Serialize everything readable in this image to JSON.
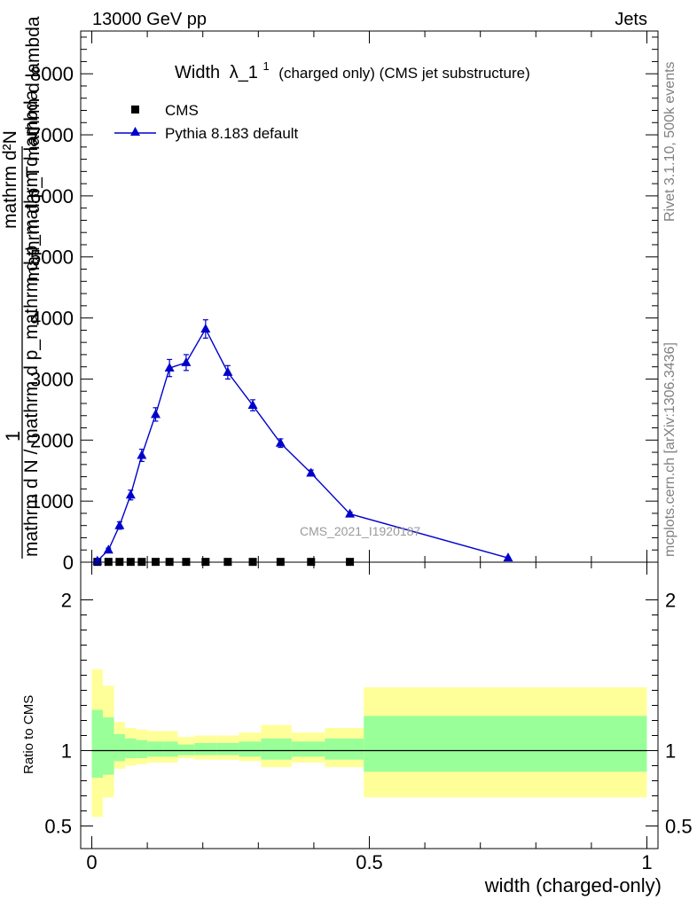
{
  "header": {
    "left": "13000 GeV pp",
    "right": "Jets"
  },
  "side_labels": {
    "rivet": "Rivet 3.1.10,  500k events",
    "mcplots": "mcplots.cern.ch [arXiv:1306.3436]"
  },
  "watermark": "CMS_2021_I1920187",
  "chart_data": [
    {
      "type": "line",
      "title": "Width",
      "title_symbol": "λ_1",
      "title_superscript": "1",
      "title_suffix": "(charged only) (CMS jet substructure)",
      "ylabel_parts": [
        "1",
        "mathrm d N / mathrm d p_mathrm d p_mathrm d lambda",
        "mathrm d²N",
        "mathrm d p_T mathrm d lambda"
      ],
      "xlim": [
        -0.02,
        1.02
      ],
      "ylim": [
        0,
        8700
      ],
      "y_ticks": [
        0,
        1000,
        2000,
        3000,
        4000,
        5000,
        6000,
        7000,
        8000
      ],
      "legend_position": "top-left",
      "series": [
        {
          "name": "CMS",
          "color": "#000000",
          "marker": "square",
          "x": [
            0.01,
            0.03,
            0.05,
            0.07,
            0.09,
            0.115,
            0.14,
            0.17,
            0.205,
            0.245,
            0.29,
            0.34,
            0.395,
            0.465
          ],
          "y": [
            5,
            5,
            5,
            5,
            5,
            5,
            5,
            5,
            5,
            5,
            5,
            5,
            5,
            5
          ]
        },
        {
          "name": "Pythia 8.183 default",
          "color": "#0000cc",
          "marker": "triangle",
          "x": [
            0.01,
            0.03,
            0.05,
            0.07,
            0.09,
            0.115,
            0.14,
            0.17,
            0.205,
            0.245,
            0.29,
            0.34,
            0.395,
            0.465,
            0.75
          ],
          "y": [
            20,
            200,
            600,
            1100,
            1750,
            2420,
            3180,
            3270,
            3820,
            3110,
            2570,
            1950,
            1460,
            790,
            70
          ],
          "yerr": [
            10,
            30,
            60,
            80,
            100,
            110,
            140,
            130,
            150,
            110,
            90,
            70,
            50,
            30,
            10
          ]
        }
      ]
    },
    {
      "type": "area",
      "ylabel": "Ratio to CMS",
      "xlabel": "width (charged-only)",
      "xlim": [
        -0.02,
        1.02
      ],
      "ylim": [
        0.35,
        2.25
      ],
      "y_ticks": [
        0.5,
        1,
        2
      ],
      "x_ticks": [
        0,
        0.5,
        1
      ],
      "x_tick_labels": [
        "0",
        "0.5",
        "1"
      ],
      "y_tick_labels": [
        "0.5",
        "1",
        "2"
      ],
      "band_colors": {
        "outer": "#ffff99",
        "inner": "#99ff99",
        "line": "#000000"
      },
      "bins": [
        {
          "x0": 0.0,
          "x1": 0.02,
          "outer": [
            0.56,
            1.54
          ],
          "inner": [
            0.82,
            1.27
          ]
        },
        {
          "x0": 0.02,
          "x1": 0.04,
          "outer": [
            0.69,
            1.43
          ],
          "inner": [
            0.84,
            1.22
          ]
        },
        {
          "x0": 0.04,
          "x1": 0.06,
          "outer": [
            0.88,
            1.19
          ],
          "inner": [
            0.93,
            1.11
          ]
        },
        {
          "x0": 0.06,
          "x1": 0.08,
          "outer": [
            0.9,
            1.15
          ],
          "inner": [
            0.95,
            1.08
          ]
        },
        {
          "x0": 0.08,
          "x1": 0.1,
          "outer": [
            0.91,
            1.14
          ],
          "inner": [
            0.95,
            1.07
          ]
        },
        {
          "x0": 0.1,
          "x1": 0.13,
          "outer": [
            0.92,
            1.13
          ],
          "inner": [
            0.96,
            1.06
          ]
        },
        {
          "x0": 0.13,
          "x1": 0.155,
          "outer": [
            0.92,
            1.13
          ],
          "inner": [
            0.96,
            1.06
          ]
        },
        {
          "x0": 0.155,
          "x1": 0.185,
          "outer": [
            0.95,
            1.09
          ],
          "inner": [
            0.97,
            1.04
          ]
        },
        {
          "x0": 0.185,
          "x1": 0.225,
          "outer": [
            0.94,
            1.1
          ],
          "inner": [
            0.97,
            1.05
          ]
        },
        {
          "x0": 0.225,
          "x1": 0.265,
          "outer": [
            0.94,
            1.1
          ],
          "inner": [
            0.97,
            1.05
          ]
        },
        {
          "x0": 0.265,
          "x1": 0.305,
          "outer": [
            0.93,
            1.12
          ],
          "inner": [
            0.96,
            1.06
          ]
        },
        {
          "x0": 0.305,
          "x1": 0.36,
          "outer": [
            0.89,
            1.17
          ],
          "inner": [
            0.94,
            1.08
          ]
        },
        {
          "x0": 0.36,
          "x1": 0.42,
          "outer": [
            0.92,
            1.12
          ],
          "inner": [
            0.96,
            1.06
          ]
        },
        {
          "x0": 0.42,
          "x1": 0.49,
          "outer": [
            0.89,
            1.15
          ],
          "inner": [
            0.94,
            1.08
          ]
        },
        {
          "x0": 0.49,
          "x1": 1.0,
          "outer": [
            0.69,
            1.42
          ],
          "inner": [
            0.86,
            1.23
          ]
        }
      ]
    }
  ]
}
